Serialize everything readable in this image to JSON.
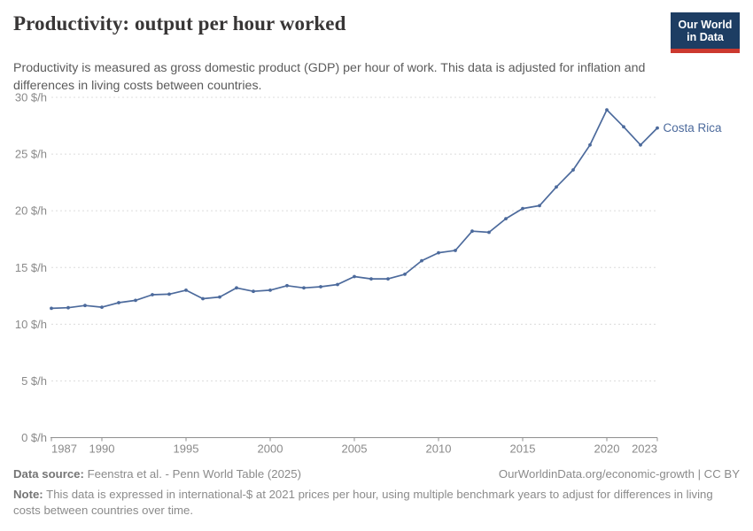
{
  "header": {
    "title": "Productivity: output per hour worked",
    "subtitle": "Productivity is measured as gross domestic product (GDP) per hour of work. This data is adjusted for inflation and differences in living costs between countries.",
    "logo": {
      "line1": "Our World",
      "line2": "in Data",
      "bg_color": "#1d3d63",
      "bar_color": "#cc392f"
    }
  },
  "chart_data": {
    "type": "line",
    "title": "Productivity: output per hour worked",
    "entity": "Costa Rica",
    "unit": "international-$ per hour",
    "x": [
      1987,
      1988,
      1989,
      1990,
      1991,
      1992,
      1993,
      1994,
      1995,
      1996,
      1997,
      1998,
      1999,
      2000,
      2001,
      2002,
      2003,
      2004,
      2005,
      2006,
      2007,
      2008,
      2009,
      2010,
      2011,
      2012,
      2013,
      2014,
      2015,
      2016,
      2017,
      2018,
      2019,
      2020,
      2021,
      2022,
      2023
    ],
    "series": [
      {
        "name": "Costa Rica",
        "values": [
          11.4,
          11.45,
          11.65,
          11.5,
          11.9,
          12.1,
          12.6,
          12.65,
          13.0,
          12.25,
          12.4,
          13.2,
          12.9,
          13.0,
          13.4,
          13.2,
          13.3,
          13.5,
          14.2,
          14.0,
          14.0,
          14.4,
          15.6,
          16.3,
          16.5,
          18.2,
          18.1,
          19.3,
          20.2,
          20.45,
          22.1,
          23.6,
          25.8,
          28.9,
          27.4,
          25.8,
          27.3
        ]
      }
    ],
    "ylim": [
      0,
      30
    ],
    "xlim": [
      1987,
      2023
    ],
    "y_ticks": [
      {
        "value": 0,
        "label": "0 $/h"
      },
      {
        "value": 5,
        "label": "5 $/h"
      },
      {
        "value": 10,
        "label": "10 $/h"
      },
      {
        "value": 15,
        "label": "15 $/h"
      },
      {
        "value": 20,
        "label": "20 $/h"
      },
      {
        "value": 25,
        "label": "25 $/h"
      },
      {
        "value": 30,
        "label": "30 $/h"
      }
    ],
    "x_ticks": [
      {
        "year": 1987,
        "label": "1987",
        "anchor": "start"
      },
      {
        "year": 1990,
        "label": "1990",
        "anchor": "middle"
      },
      {
        "year": 1995,
        "label": "1995",
        "anchor": "middle"
      },
      {
        "year": 2000,
        "label": "2000",
        "anchor": "middle"
      },
      {
        "year": 2005,
        "label": "2005",
        "anchor": "middle"
      },
      {
        "year": 2010,
        "label": "2010",
        "anchor": "middle"
      },
      {
        "year": 2015,
        "label": "2015",
        "anchor": "middle"
      },
      {
        "year": 2020,
        "label": "2020",
        "anchor": "middle"
      },
      {
        "year": 2023,
        "label": "2023",
        "anchor": "end"
      }
    ],
    "grid": "horizontal-dashed",
    "legend": "entity-label-at-line-end",
    "colors": {
      "line": "#4c6a9c",
      "grid": "#dcdcdc",
      "axis": "#8f8f8f",
      "tick_text": "#8a8a8a"
    }
  },
  "footer": {
    "data_source_label": "Data source:",
    "data_source_text": "Feenstra et al. - Penn World Table (2025)",
    "credit": "OurWorldinData.org/economic-growth | CC BY",
    "note_label": "Note:",
    "note_text": "This data is expressed in international-$ at 2021 prices per hour, using multiple benchmark years to adjust for differences in living costs between countries over time."
  }
}
